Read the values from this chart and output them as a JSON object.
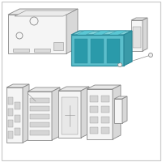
{
  "background_color": "#ffffff",
  "border_color": "#c8c8c8",
  "highlight_color": "#5bbfcc",
  "highlight_face_top": "#7dd0d8",
  "highlight_face_right": "#3a9aa8",
  "line_color": "#888888",
  "line_width": 0.6,
  "fig_width": 2.0,
  "fig_height": 2.0,
  "dpi": 100
}
